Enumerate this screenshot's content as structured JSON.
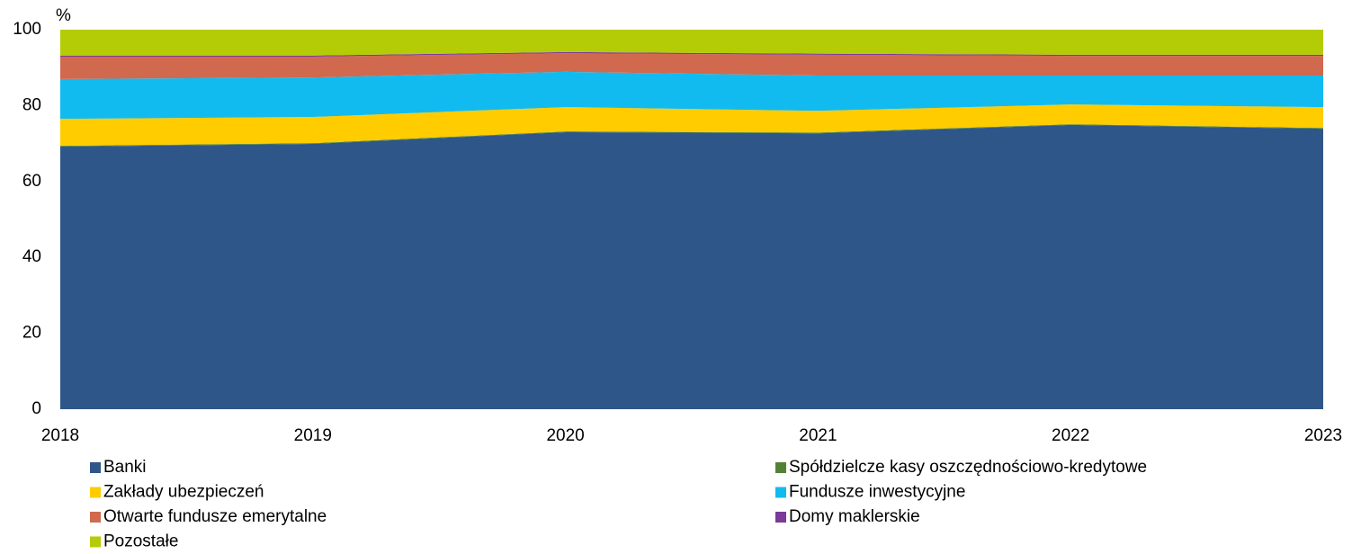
{
  "chart_data": {
    "type": "stacked-area",
    "y_label": "%",
    "categories": [
      "2018",
      "2019",
      "2020",
      "2021",
      "2022",
      "2023"
    ],
    "ylim": [
      0,
      100
    ],
    "yticks": [
      0,
      20,
      40,
      60,
      80,
      100
    ],
    "grid": false,
    "series": [
      {
        "name": "Banki",
        "color": "#2f5689",
        "values": [
          69.2,
          69.9,
          73.0,
          72.7,
          74.9,
          73.9
        ]
      },
      {
        "name": "Spółdzielcze kasy oszczędnościowo-kredytowe",
        "color": "#548235",
        "values": [
          0.2,
          0.2,
          0.2,
          0.2,
          0.2,
          0.2
        ]
      },
      {
        "name": "Zakłady ubezpieczeń",
        "color": "#ffcc00",
        "values": [
          7.1,
          6.9,
          6.4,
          5.7,
          5.2,
          5.5
        ]
      },
      {
        "name": "Fundusze inwestycyjne",
        "color": "#12bbef",
        "values": [
          10.5,
          10.4,
          9.3,
          9.3,
          7.6,
          8.3
        ]
      },
      {
        "name": "Otwarte fundusze emerytalne",
        "color": "#d0694e",
        "values": [
          5.9,
          5.5,
          4.9,
          5.5,
          5.2,
          5.2
        ]
      },
      {
        "name": "Domy maklerskie",
        "color": "#7b3a96",
        "values": [
          0.3,
          0.3,
          0.3,
          0.3,
          0.3,
          0.3
        ]
      },
      {
        "name": "Pozostałe",
        "color": "#b4cc06",
        "values": [
          6.8,
          6.8,
          5.9,
          6.3,
          6.6,
          6.6
        ]
      }
    ]
  }
}
